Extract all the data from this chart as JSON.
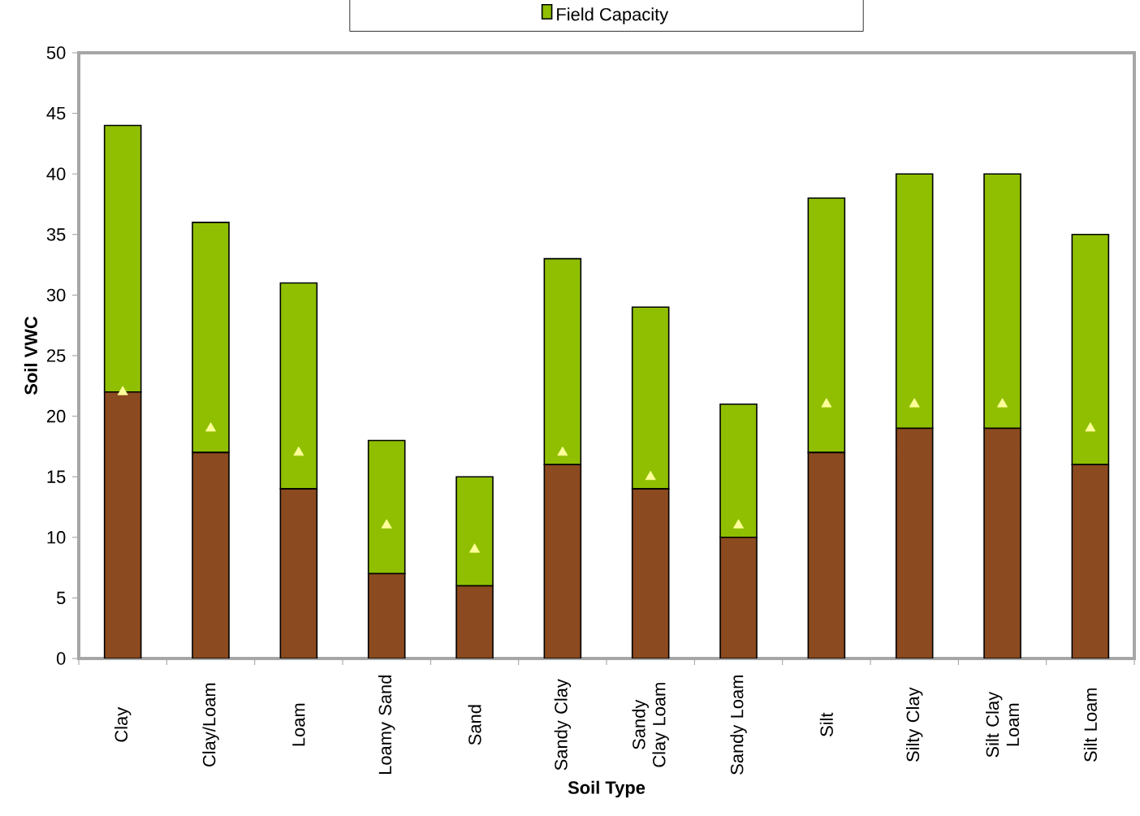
{
  "chart_data": {
    "type": "bar",
    "stacked": true,
    "xlabel": "Soil Type",
    "ylabel": "Soil VWC",
    "legend": "top",
    "ylim": [
      0,
      50
    ],
    "yticks": [
      0,
      5,
      10,
      15,
      20,
      25,
      30,
      35,
      40,
      45,
      50
    ],
    "categories": [
      "Clay",
      "Clay/Loam",
      "Loam",
      "Loamy Sand",
      "Sand",
      "Sandy Clay",
      "Sandy Clay Loam",
      "Sandy Loam",
      "Silt",
      "Silty Clay",
      "Silt Clay Loam",
      "Silt Loam"
    ],
    "series": [
      {
        "color": "#8b4a1f",
        "values": [
          22,
          17,
          14,
          7,
          6,
          16,
          14,
          10,
          17,
          19,
          19,
          16
        ]
      },
      {
        "name": "Field Capacity",
        "color": "#8fbf00",
        "values": [
          22,
          19,
          17,
          11,
          9,
          17,
          15,
          11,
          21,
          21,
          21,
          19
        ]
      },
      {
        "type": "scatter",
        "marker": "triangle",
        "color": "#ffff99",
        "x": [
          "Clay",
          "Clay/Loam",
          "Loam",
          "Loamy Sand",
          "Sand",
          "Sandy Clay",
          "Sandy Clay Loam",
          "Sandy Loam",
          "Silt",
          "Silty Clay",
          "Silt Clay Loam",
          "Silt Loam"
        ],
        "values": [
          22,
          19,
          17,
          11,
          9,
          17,
          15,
          11,
          21,
          21,
          21,
          19
        ]
      }
    ]
  }
}
